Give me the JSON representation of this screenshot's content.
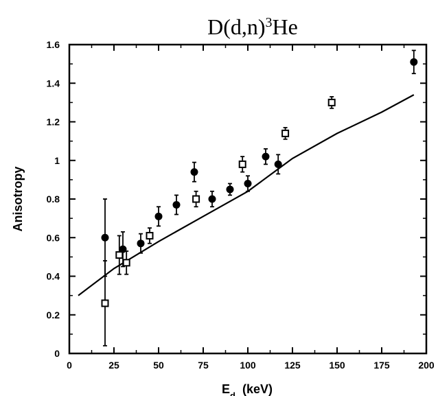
{
  "chart_data": {
    "type": "scatter",
    "title": "D(d,n)",
    "title_superscript": "3",
    "title_suffix": "He",
    "xlabel": "E",
    "xlabel_subscript": "d",
    "xlabel_unit": "(keV)",
    "ylabel": "Anisotropy",
    "xlim": [
      0,
      200
    ],
    "ylim": [
      0,
      1.6
    ],
    "x_ticks": [
      0,
      25,
      50,
      75,
      100,
      125,
      150,
      175,
      200
    ],
    "x_tick_labels": [
      "0",
      "25",
      "50",
      "75",
      "100",
      "125",
      "150",
      "175",
      "200"
    ],
    "y_ticks": [
      0,
      0.2,
      0.4,
      0.6,
      0.8,
      1,
      1.2,
      1.4,
      1.6
    ],
    "y_tick_labels": [
      "0",
      "0.2",
      "0.4",
      "0.6",
      "0.8",
      "1",
      "1.2",
      "1.4",
      "1.6"
    ],
    "grid": false,
    "legend": "none",
    "series": [
      {
        "marker": "filled-circle",
        "points": [
          {
            "x": 20,
            "y": 0.6,
            "yerr": 0.2
          },
          {
            "x": 30,
            "y": 0.54,
            "yerr": 0.09
          },
          {
            "x": 40,
            "y": 0.57,
            "yerr": 0.05
          },
          {
            "x": 50,
            "y": 0.71,
            "yerr": 0.05
          },
          {
            "x": 60,
            "y": 0.77,
            "yerr": 0.05
          },
          {
            "x": 70,
            "y": 0.94,
            "yerr": 0.05
          },
          {
            "x": 80,
            "y": 0.8,
            "yerr": 0.04
          },
          {
            "x": 90,
            "y": 0.85,
            "yerr": 0.03
          },
          {
            "x": 100,
            "y": 0.88,
            "yerr": 0.04
          },
          {
            "x": 110,
            "y": 1.02,
            "yerr": 0.04
          },
          {
            "x": 117,
            "y": 0.98,
            "yerr": 0.05
          },
          {
            "x": 193,
            "y": 1.51,
            "yerr": 0.06
          }
        ]
      },
      {
        "marker": "open-square",
        "points": [
          {
            "x": 20,
            "y": 0.26,
            "yerr": 0.22
          },
          {
            "x": 28,
            "y": 0.51,
            "yerr": 0.1
          },
          {
            "x": 32,
            "y": 0.47,
            "yerr": 0.06
          },
          {
            "x": 45,
            "y": 0.61,
            "yerr": 0.04
          },
          {
            "x": 71,
            "y": 0.8,
            "yerr": 0.04
          },
          {
            "x": 97,
            "y": 0.98,
            "yerr": 0.04
          },
          {
            "x": 121,
            "y": 1.14,
            "yerr": 0.03
          },
          {
            "x": 147,
            "y": 1.3,
            "yerr": 0.03
          }
        ]
      },
      {
        "marker": "line",
        "points": [
          {
            "x": 5,
            "y": 0.3
          },
          {
            "x": 25,
            "y": 0.44
          },
          {
            "x": 50,
            "y": 0.58
          },
          {
            "x": 75,
            "y": 0.71
          },
          {
            "x": 100,
            "y": 0.84
          },
          {
            "x": 125,
            "y": 1.01
          },
          {
            "x": 150,
            "y": 1.14
          },
          {
            "x": 175,
            "y": 1.25
          },
          {
            "x": 193,
            "y": 1.34
          }
        ]
      }
    ]
  },
  "colors": {
    "foreground": "#000000",
    "background": "#ffffff"
  }
}
